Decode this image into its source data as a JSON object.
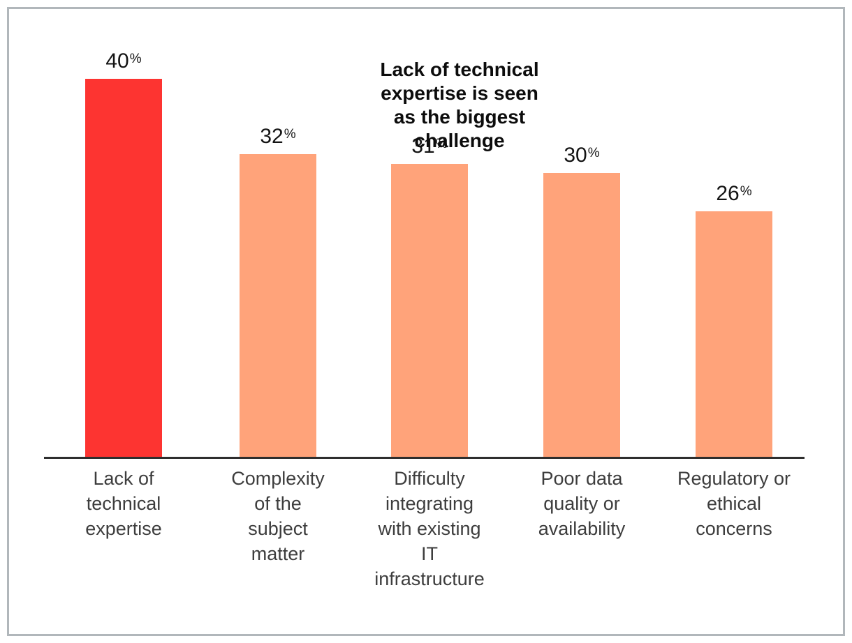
{
  "chart_data": {
    "type": "bar",
    "orientation": "vertical",
    "title": "Lack of technical expertise is seen as the biggest challenge",
    "categories": [
      "Lack of technical expertise",
      "Complexity of the subject matter",
      "Difficulty integrating with existing IT infrastructure",
      "Poor data quality or availability",
      "Regulatory or ethical concerns"
    ],
    "values": [
      40,
      32,
      31,
      30,
      26
    ],
    "data_labels": [
      "40%",
      "32%",
      "31%",
      "30%",
      "26%"
    ],
    "value_suffix": "%",
    "highlighted_index": 0,
    "xlabel": "",
    "ylabel": "",
    "ylim": [
      0,
      45
    ],
    "grid": false,
    "legend": false,
    "colors": {
      "highlight": "#fd3431",
      "default_bar": "#ffa37a",
      "axis_line": "#2e2e2e",
      "value_label_text": "#141414",
      "category_text": "#3d3d3d",
      "title_text": "#0c0c0c",
      "frame_border": "#b1b7bb"
    }
  },
  "display": {
    "title": "Lack of technical\nexpertise is seen\nas the biggest\nchallenge",
    "categories": [
      "Lack of\ntechnical\nexpertise",
      "Complexity\nof the\nsubject\nmatter",
      "Difficulty\nintegrating\nwith existing\nIT\ninfrastructure",
      "Poor data\nquality or\navailability",
      "Regulatory or\nethical\nconcerns"
    ],
    "percent_symbol": "%"
  }
}
